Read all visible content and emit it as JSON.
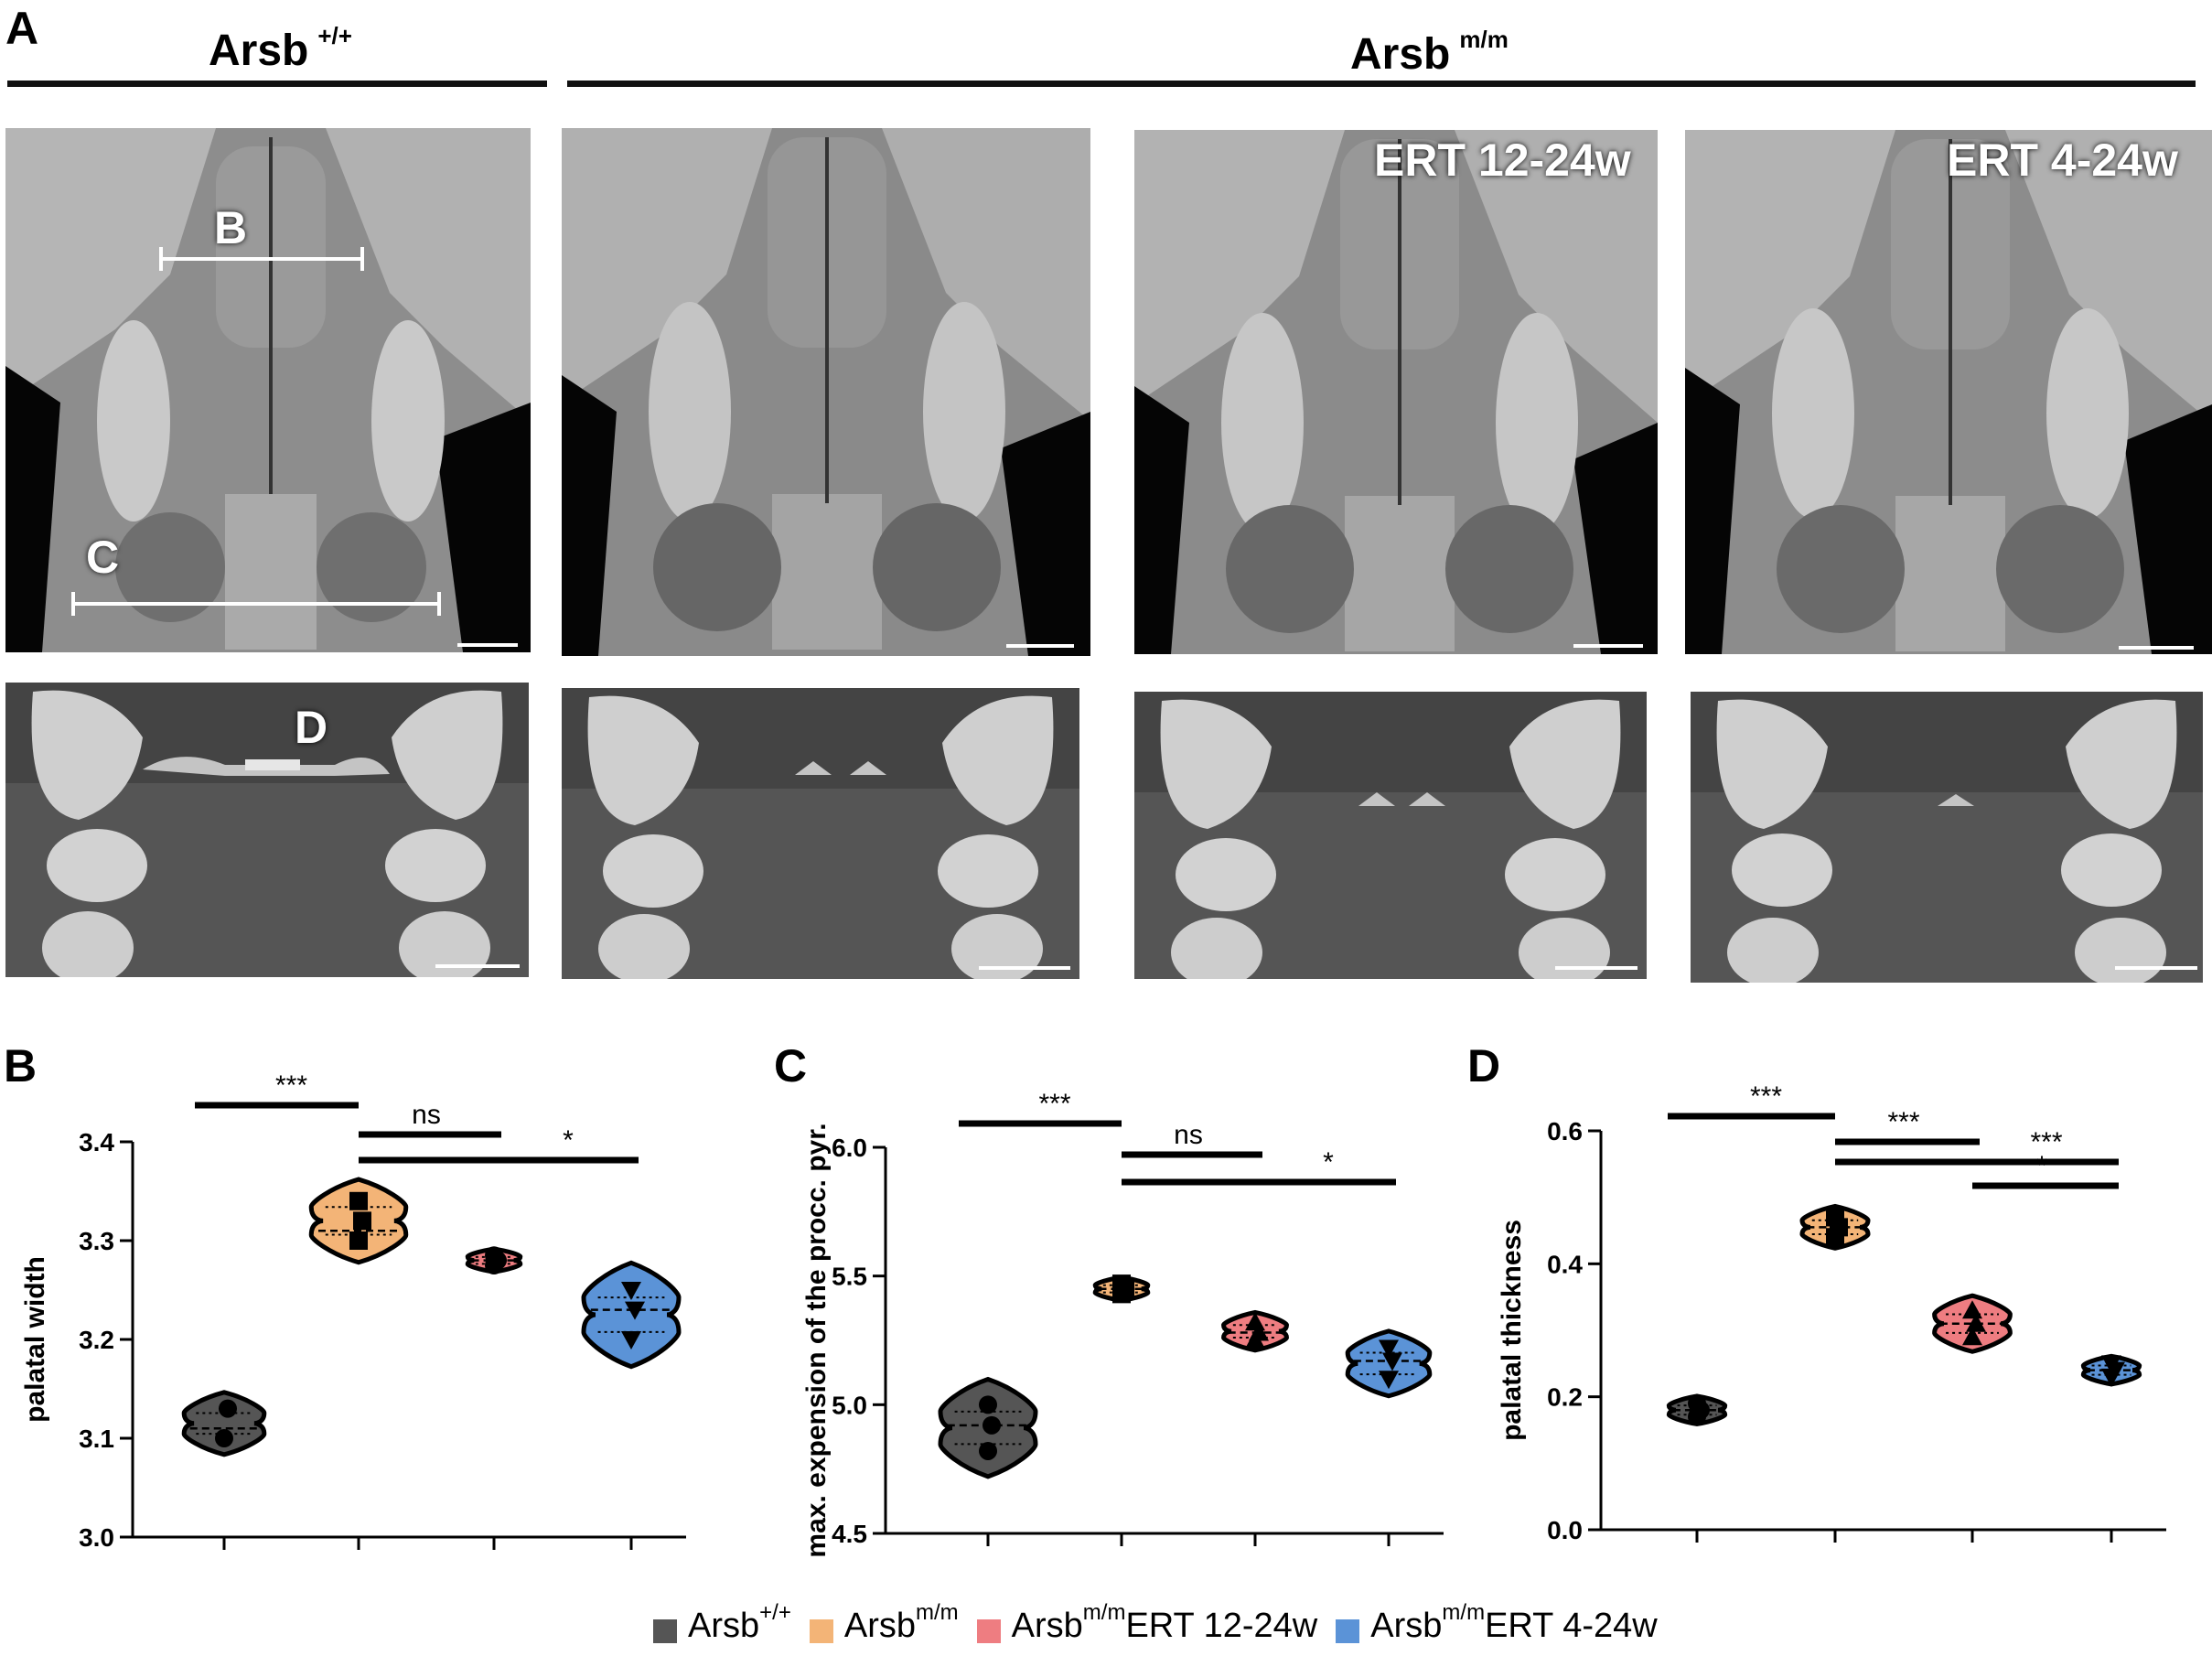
{
  "panels": {
    "a_letter": "A",
    "b_letter": "B",
    "c_letter": "C",
    "d_letter": "D"
  },
  "groups": {
    "wt": {
      "name": "Arsb",
      "sup": "+/+"
    },
    "mut": {
      "name": "Arsb",
      "sup": "m/m"
    }
  },
  "tiles": {
    "ert12": "ERT 12-24w",
    "ert4": "ERT 4-24w",
    "marker_b": "B",
    "marker_c": "C",
    "marker_d": "D"
  },
  "colors": {
    "wt": "#555555",
    "mm": "#f3b477",
    "ert12": "#ee7d81",
    "ert4": "#5b93d7"
  },
  "chart_data": [
    {
      "id": "B",
      "type": "violin",
      "title": "",
      "xlabel": "",
      "ylabel": "palatal width",
      "ylim": [
        3.0,
        3.4
      ],
      "yticks": [
        "3.0",
        "3.1",
        "3.2",
        "3.3",
        "3.4"
      ],
      "series": [
        {
          "group": "Arsb+/+",
          "values": [
            3.1,
            3.13
          ],
          "median": 3.11,
          "markers": "circle"
        },
        {
          "group": "Arsbm/m",
          "values": [
            3.3,
            3.32,
            3.34
          ],
          "median": 3.31,
          "markers": "square"
        },
        {
          "group": "Arsbm/m ERT 12-24w",
          "values": [
            3.275,
            3.28,
            3.285
          ],
          "median": 3.28,
          "markers": "circle"
        },
        {
          "group": "Arsbm/m ERT 4-24w",
          "values": [
            3.2,
            3.23,
            3.25
          ],
          "median": 3.23,
          "markers": "triangle-down"
        }
      ],
      "significance": [
        {
          "from": 0,
          "to": 1,
          "label": "***"
        },
        {
          "from": 1,
          "to": 2,
          "label": "ns"
        },
        {
          "from": 1,
          "to": 3,
          "label": "*"
        }
      ]
    },
    {
      "id": "C",
      "type": "violin",
      "title": "",
      "xlabel": "",
      "ylabel": "max. expension of the procc. pyr.",
      "ylim": [
        4.5,
        6.0
      ],
      "yticks": [
        "4.5",
        "5.0",
        "5.5",
        "6.0"
      ],
      "series": [
        {
          "group": "Arsb+/+",
          "values": [
            4.82,
            4.92,
            5.0
          ],
          "median": 4.92,
          "markers": "circle"
        },
        {
          "group": "Arsbm/m",
          "values": [
            5.43,
            5.45,
            5.47
          ],
          "median": 5.45,
          "markers": "square"
        },
        {
          "group": "Arsbm/m ERT 12-24w",
          "values": [
            5.25,
            5.28,
            5.32
          ],
          "median": 5.28,
          "markers": "triangle-up"
        },
        {
          "group": "Arsbm/m ERT 4-24w",
          "values": [
            5.1,
            5.17,
            5.22
          ],
          "median": 5.17,
          "markers": "triangle-down"
        }
      ],
      "significance": [
        {
          "from": 0,
          "to": 1,
          "label": "***"
        },
        {
          "from": 1,
          "to": 2,
          "label": "ns"
        },
        {
          "from": 1,
          "to": 3,
          "label": "*"
        }
      ]
    },
    {
      "id": "D",
      "type": "violin",
      "title": "",
      "xlabel": "",
      "ylabel": "palatal thickness",
      "ylim": [
        0.0,
        0.6
      ],
      "yticks": [
        "0.0",
        "0.2",
        "0.4",
        "0.6"
      ],
      "series": [
        {
          "group": "Arsb+/+",
          "values": [
            0.17,
            0.18,
            0.19
          ],
          "median": 0.18,
          "markers": "circle"
        },
        {
          "group": "Arsbm/m",
          "values": [
            0.44,
            0.455,
            0.47
          ],
          "median": 0.455,
          "markers": "square"
        },
        {
          "group": "Arsbm/m ERT 12-24w",
          "values": [
            0.29,
            0.31,
            0.33
          ],
          "median": 0.31,
          "markers": "triangle-up"
        },
        {
          "group": "Arsbm/m ERT 4-24w",
          "values": [
            0.23,
            0.24,
            0.25
          ],
          "median": 0.24,
          "markers": "triangle-down"
        }
      ],
      "significance": [
        {
          "from": 0,
          "to": 1,
          "label": "***"
        },
        {
          "from": 1,
          "to": 2,
          "label": "***"
        },
        {
          "from": 1,
          "to": 3,
          "label": "***"
        },
        {
          "from": 2,
          "to": 3,
          "label": "*"
        }
      ]
    }
  ],
  "legend": [
    {
      "name": "Arsb",
      "sup": "+/+",
      "suffix": "",
      "color": "#555555"
    },
    {
      "name": "Arsb",
      "sup": "m/m",
      "suffix": "",
      "color": "#f3b477"
    },
    {
      "name": "Arsb",
      "sup": "m/m",
      "suffix": " ERT 12-24w",
      "color": "#ee7d81"
    },
    {
      "name": "Arsb",
      "sup": "m/m",
      "suffix": " ERT 4-24w",
      "color": "#5b93d7"
    }
  ]
}
